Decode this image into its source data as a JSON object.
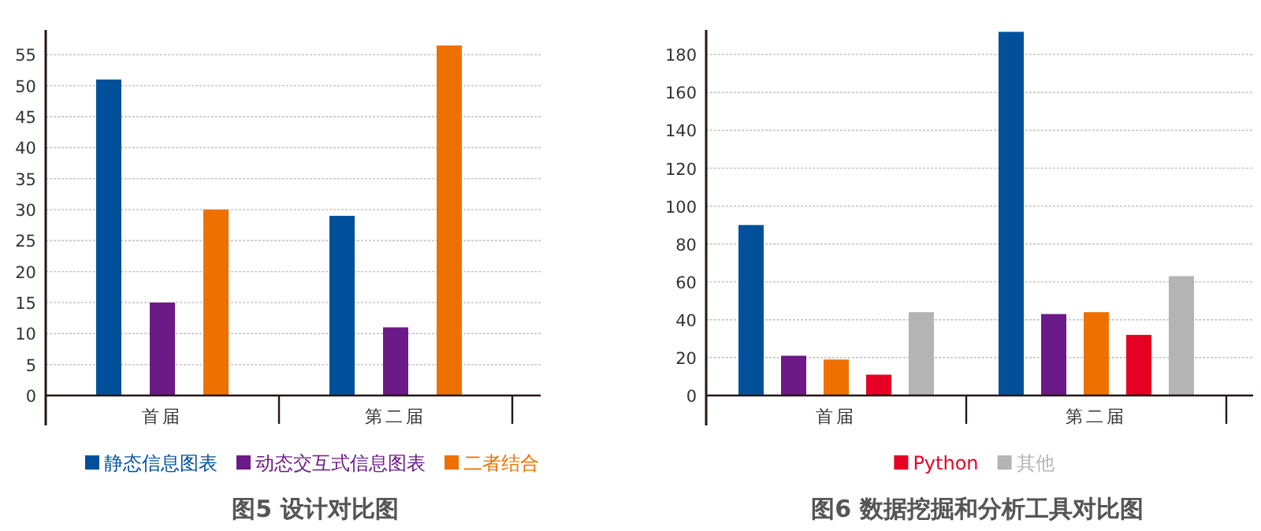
{
  "chart_data": [
    {
      "type": "bar",
      "title": "图5 设计对比图",
      "categories": [
        "首届",
        "第二届"
      ],
      "series": [
        {
          "name": "静态信息图表",
          "color": "#00509b",
          "values": [
            51,
            29
          ]
        },
        {
          "name": "动态交互式信息图表",
          "color": "#6c1a87",
          "values": [
            15,
            11
          ]
        },
        {
          "name": "二者结合",
          "color": "#ee7100",
          "values": [
            30,
            56.5
          ]
        }
      ],
      "ylim": [
        0,
        59
      ],
      "yticks": [
        0,
        5,
        10,
        15,
        20,
        25,
        30,
        35,
        40,
        45,
        50,
        55
      ],
      "grid": "y",
      "legend": "bottom"
    },
    {
      "type": "bar",
      "title": "图6 数据挖掘和分析工具对比图",
      "categories": [
        "首届",
        "第二届"
      ],
      "series": [
        {
          "color": "#00509b",
          "values": [
            90,
            192
          ]
        },
        {
          "color": "#6c1a87",
          "values": [
            21,
            43
          ]
        },
        {
          "color": "#ee7100",
          "values": [
            19,
            44
          ]
        },
        {
          "name": "Python",
          "color": "#e60023",
          "values": [
            11,
            32
          ]
        },
        {
          "name": "其他",
          "color": "#b4b4b4",
          "values": [
            44,
            63
          ]
        }
      ],
      "ylim": [
        0,
        193
      ],
      "yticks": [
        0,
        20,
        40,
        60,
        80,
        100,
        120,
        140,
        160,
        180
      ],
      "grid": "y",
      "legend": "bottom"
    }
  ]
}
